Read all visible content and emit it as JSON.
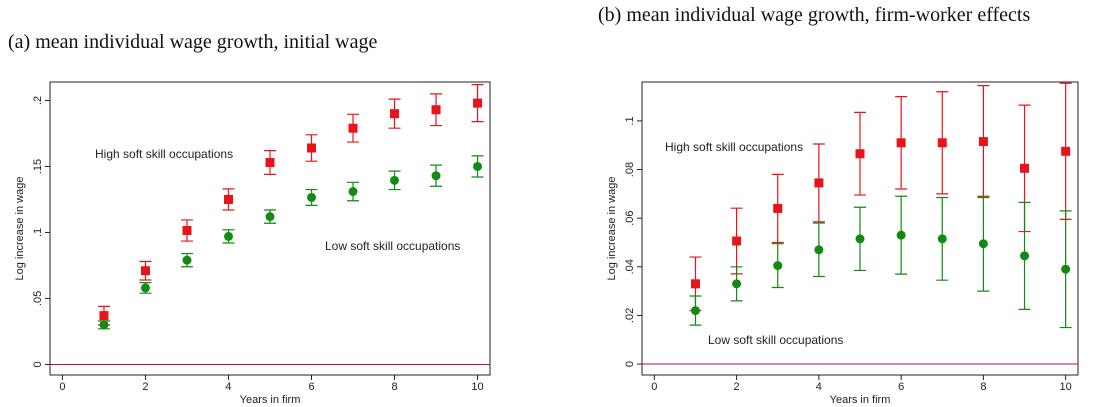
{
  "chart_data": [
    {
      "type": "scatter",
      "title": "(a) mean individual wage growth, initial wage",
      "x_label": "Years in firm",
      "y_label": "Log increase in wage",
      "xlim": [
        -0.3,
        10.3
      ],
      "ylim": [
        -0.008,
        0.214
      ],
      "xticks": [
        0,
        2,
        4,
        6,
        8,
        10
      ],
      "yticks": [
        0,
        {
          "value": 0.05,
          "label": ".05"
        },
        {
          "value": 0.1,
          "label": ".1"
        },
        {
          "value": 0.15,
          "label": ".15"
        },
        {
          "value": 0.2,
          "label": ".2"
        }
      ],
      "reference_line": 0,
      "reference_color": "#b0143c",
      "x": [
        1,
        2,
        3,
        4,
        5,
        6,
        7,
        8,
        9,
        10
      ],
      "series": [
        {
          "name": "High soft skill occupations",
          "color": "#e8141c",
          "marker": "square",
          "values": [
            0.037,
            0.071,
            0.1015,
            0.125,
            0.153,
            0.164,
            0.179,
            0.19,
            0.193,
            0.198
          ],
          "errors": [
            0.007,
            0.007,
            0.008,
            0.008,
            0.009,
            0.01,
            0.0105,
            0.011,
            0.012,
            0.014
          ]
        },
        {
          "name": "Low soft skill occupations",
          "color": "#138a13",
          "marker": "circle",
          "values": [
            0.03,
            0.058,
            0.079,
            0.097,
            0.112,
            0.1265,
            0.131,
            0.1395,
            0.143,
            0.15
          ],
          "errors": [
            0.003,
            0.004,
            0.005,
            0.005,
            0.005,
            0.006,
            0.007,
            0.007,
            0.008,
            0.008
          ]
        }
      ]
    },
    {
      "type": "scatter",
      "title": "(b) mean individual wage growth, firm-worker effects",
      "x_label": "Years in firm",
      "y_label": "Log increase in wage",
      "xlim": [
        -0.3,
        10.3
      ],
      "ylim": [
        -0.0045,
        0.116
      ],
      "xticks": [
        0,
        2,
        4,
        6,
        8,
        10
      ],
      "yticks": [
        0,
        {
          "value": 0.02,
          "label": ".02"
        },
        {
          "value": 0.04,
          "label": ".04"
        },
        {
          "value": 0.06,
          "label": ".06"
        },
        {
          "value": 0.08,
          "label": ".08"
        },
        {
          "value": 0.1,
          "label": ".1"
        }
      ],
      "reference_line": 0,
      "reference_color": "#b0143c",
      "x": [
        1,
        2,
        3,
        4,
        5,
        6,
        7,
        8,
        9,
        10
      ],
      "series": [
        {
          "name": "High soft skill occupations",
          "color": "#e8141c",
          "marker": "square",
          "values": [
            0.033,
            0.0506,
            0.064,
            0.0745,
            0.0865,
            0.091,
            0.091,
            0.0915,
            0.0805,
            0.0875
          ],
          "errors": [
            0.011,
            0.0135,
            0.014,
            0.016,
            0.017,
            0.019,
            0.021,
            0.023,
            0.026,
            0.028
          ]
        },
        {
          "name": "Low soft skill occupations",
          "color": "#138a13",
          "marker": "circle",
          "values": [
            0.022,
            0.033,
            0.0405,
            0.047,
            0.0515,
            0.053,
            0.0515,
            0.0495,
            0.0445,
            0.039
          ],
          "errors": [
            0.006,
            0.007,
            0.009,
            0.011,
            0.013,
            0.016,
            0.017,
            0.0195,
            0.022,
            0.024
          ]
        }
      ]
    }
  ]
}
